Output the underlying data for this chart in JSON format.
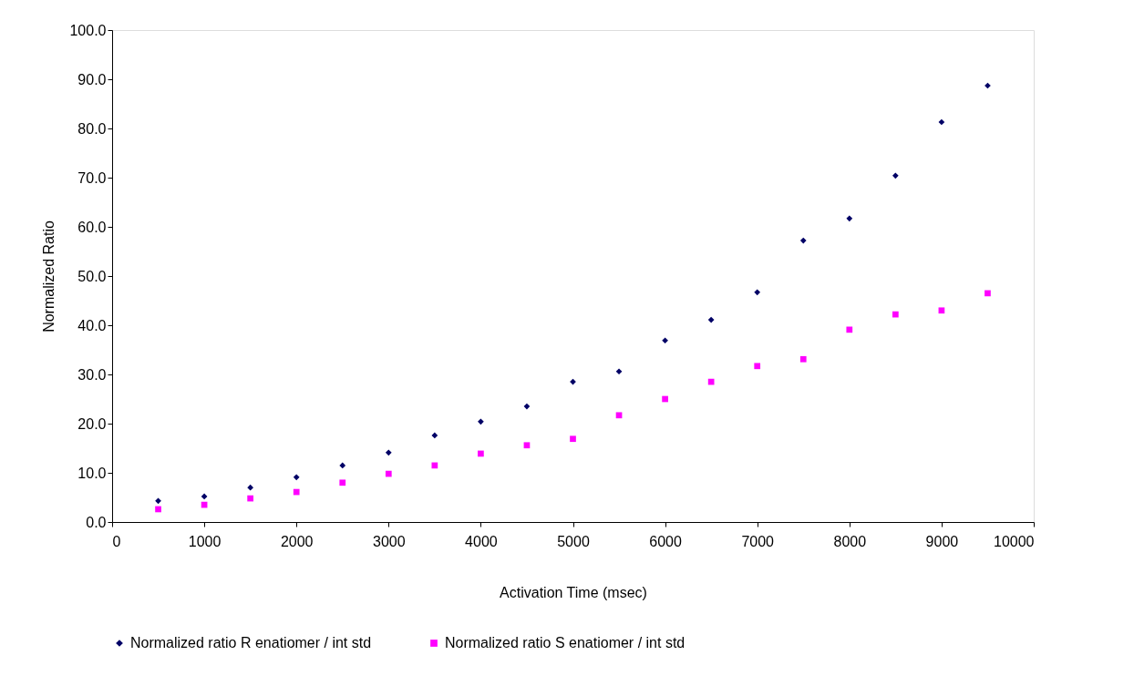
{
  "chart_data": {
    "type": "scatter",
    "xlabel": "Activation Time (msec)",
    "ylabel": "Normalized Ratio",
    "x": [
      500,
      1000,
      1500,
      2000,
      2500,
      3000,
      3500,
      4000,
      4500,
      5000,
      5500,
      6000,
      6500,
      7000,
      7500,
      8000,
      8500,
      9000,
      9500
    ],
    "series": [
      {
        "name": "Normalized ratio R enatiomer / int std",
        "color": "#000066",
        "marker": "diamond",
        "values": [
          4.3,
          5.2,
          7.0,
          9.1,
          11.5,
          14.1,
          17.6,
          20.4,
          23.5,
          28.5,
          30.6,
          36.9,
          41.1,
          46.7,
          57.2,
          61.7,
          70.4,
          81.3,
          88.7
        ]
      },
      {
        "name": "Normalized ratio S enatiomer / int std",
        "color": "#ff00ff",
        "marker": "square",
        "values": [
          2.6,
          3.5,
          4.8,
          6.1,
          8.0,
          9.8,
          11.5,
          13.9,
          15.6,
          16.9,
          21.7,
          25.0,
          28.5,
          31.7,
          33.1,
          39.1,
          42.2,
          43.0,
          46.5
        ]
      }
    ],
    "xlim": [
      0,
      10000
    ],
    "xticks": [
      0,
      1000,
      2000,
      3000,
      4000,
      5000,
      6000,
      7000,
      8000,
      9000,
      10000
    ],
    "ylim": [
      0,
      100
    ],
    "yticks": [
      {
        "value": 0,
        "label": "0.0"
      },
      {
        "value": 10,
        "label": "10.0"
      },
      {
        "value": 20,
        "label": "20.0"
      },
      {
        "value": 30,
        "label": "30.0"
      },
      {
        "value": 40,
        "label": "40.0"
      },
      {
        "value": 50,
        "label": "50.0"
      },
      {
        "value": 60,
        "label": "60.0"
      },
      {
        "value": 70,
        "label": "70.0"
      },
      {
        "value": 80,
        "label": "80.0"
      },
      {
        "value": 90,
        "label": "90.0"
      },
      {
        "value": 100,
        "label": "100.0"
      }
    ],
    "grid": false,
    "legend": "bottom"
  }
}
